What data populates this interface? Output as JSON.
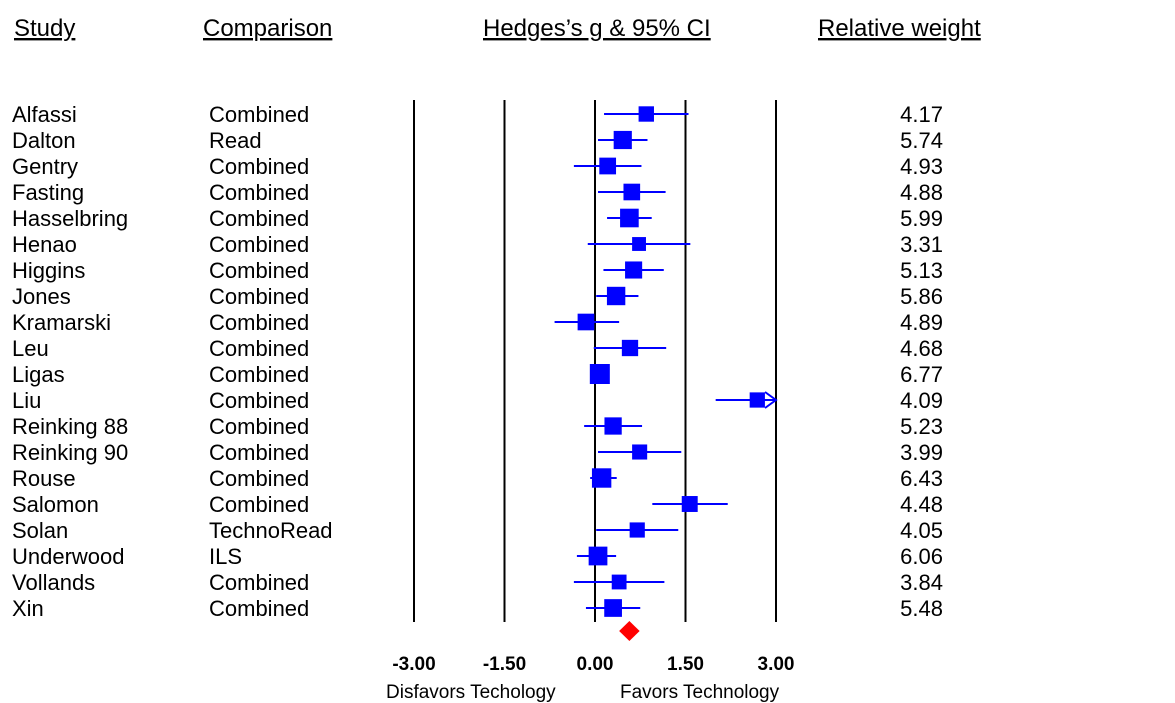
{
  "chart_data": {
    "type": "forest",
    "headers": {
      "study": "Study",
      "comparison": "Comparison",
      "effect": "Hedges’s g & 95% CI",
      "weight": "Relative weight"
    },
    "xlim": [
      -3.0,
      3.0
    ],
    "ticks": [
      -3.0,
      -1.5,
      0.0,
      1.5,
      3.0
    ],
    "tick_labels": [
      "-3.00",
      "-1.50",
      "0.00",
      "1.50",
      "3.00"
    ],
    "xlabel_left": "Disfavors Techology",
    "xlabel_right": "Favors Technology",
    "studies": [
      {
        "study": "Alfassi",
        "comparison": "Combined",
        "g": 0.85,
        "lower": 0.15,
        "upper": 1.55,
        "weight": "4.17",
        "weight_value": 4.17
      },
      {
        "study": "Dalton",
        "comparison": "Read",
        "g": 0.46,
        "lower": 0.05,
        "upper": 0.87,
        "weight": "5.74",
        "weight_value": 5.74
      },
      {
        "study": "Gentry",
        "comparison": "Combined",
        "g": 0.21,
        "lower": -0.35,
        "upper": 0.77,
        "weight": "4.93",
        "weight_value": 4.93
      },
      {
        "study": "Fasting",
        "comparison": "Combined",
        "g": 0.61,
        "lower": 0.05,
        "upper": 1.17,
        "weight": "4.88",
        "weight_value": 4.88
      },
      {
        "study": "Hasselbring",
        "comparison": "Combined",
        "g": 0.57,
        "lower": 0.2,
        "upper": 0.94,
        "weight": "5.99",
        "weight_value": 5.99
      },
      {
        "study": "Henao",
        "comparison": "Combined",
        "g": 0.73,
        "lower": -0.12,
        "upper": 1.58,
        "weight": "3.31",
        "weight_value": 3.31
      },
      {
        "study": "Higgins",
        "comparison": "Combined",
        "g": 0.64,
        "lower": 0.14,
        "upper": 1.14,
        "weight": "5.13",
        "weight_value": 5.13
      },
      {
        "study": "Jones",
        "comparison": "Combined",
        "g": 0.35,
        "lower": 0.02,
        "upper": 0.72,
        "weight": "5.86",
        "weight_value": 5.86
      },
      {
        "study": "Kramarski",
        "comparison": "Combined",
        "g": -0.15,
        "lower": -0.67,
        "upper": 0.4,
        "weight": "4.89",
        "weight_value": 4.89
      },
      {
        "study": "Leu",
        "comparison": "Combined",
        "g": 0.58,
        "lower": -0.02,
        "upper": 1.18,
        "weight": "4.68",
        "weight_value": 4.68
      },
      {
        "study": "Ligas",
        "comparison": "Combined",
        "g": 0.08,
        "lower": -0.05,
        "upper": 0.21,
        "weight": "6.77",
        "weight_value": 6.77
      },
      {
        "study": "Liu",
        "comparison": "Combined",
        "g": 2.69,
        "lower": 2.0,
        "upper": 3.0,
        "upper_truncated": true,
        "weight": "4.09",
        "weight_value": 4.09
      },
      {
        "study": "Reinking 88",
        "comparison": "Combined",
        "g": 0.3,
        "lower": -0.18,
        "upper": 0.78,
        "weight": "5.23",
        "weight_value": 5.23
      },
      {
        "study": "Reinking 90",
        "comparison": "Combined",
        "g": 0.74,
        "lower": 0.05,
        "upper": 1.43,
        "weight": "3.99",
        "weight_value": 3.99
      },
      {
        "study": "Rouse",
        "comparison": "Combined",
        "g": 0.11,
        "lower": -0.08,
        "upper": 0.36,
        "weight": "6.43",
        "weight_value": 6.43
      },
      {
        "study": "Salomon",
        "comparison": "Combined",
        "g": 1.57,
        "lower": 0.95,
        "upper": 2.2,
        "weight": "4.48",
        "weight_value": 4.48
      },
      {
        "study": "Solan",
        "comparison": "TechnoRead",
        "g": 0.7,
        "lower": 0.02,
        "upper": 1.38,
        "weight": "4.05",
        "weight_value": 4.05
      },
      {
        "study": "Underwood",
        "comparison": "ILS",
        "g": 0.05,
        "lower": -0.3,
        "upper": 0.35,
        "weight": "6.06",
        "weight_value": 6.06
      },
      {
        "study": "Vollands",
        "comparison": "Combined",
        "g": 0.4,
        "lower": -0.35,
        "upper": 1.15,
        "weight": "3.84",
        "weight_value": 3.84
      },
      {
        "study": "Xin",
        "comparison": "Combined",
        "g": 0.3,
        "lower": -0.15,
        "upper": 0.75,
        "weight": "5.48",
        "weight_value": 5.48
      }
    ],
    "summary": {
      "g": 0.57,
      "lower": 0.4,
      "upper": 0.74
    },
    "colors": {
      "marker": "#0000ff",
      "summary": "#ff0000",
      "lines": "#000000",
      "text": "#000000"
    }
  }
}
